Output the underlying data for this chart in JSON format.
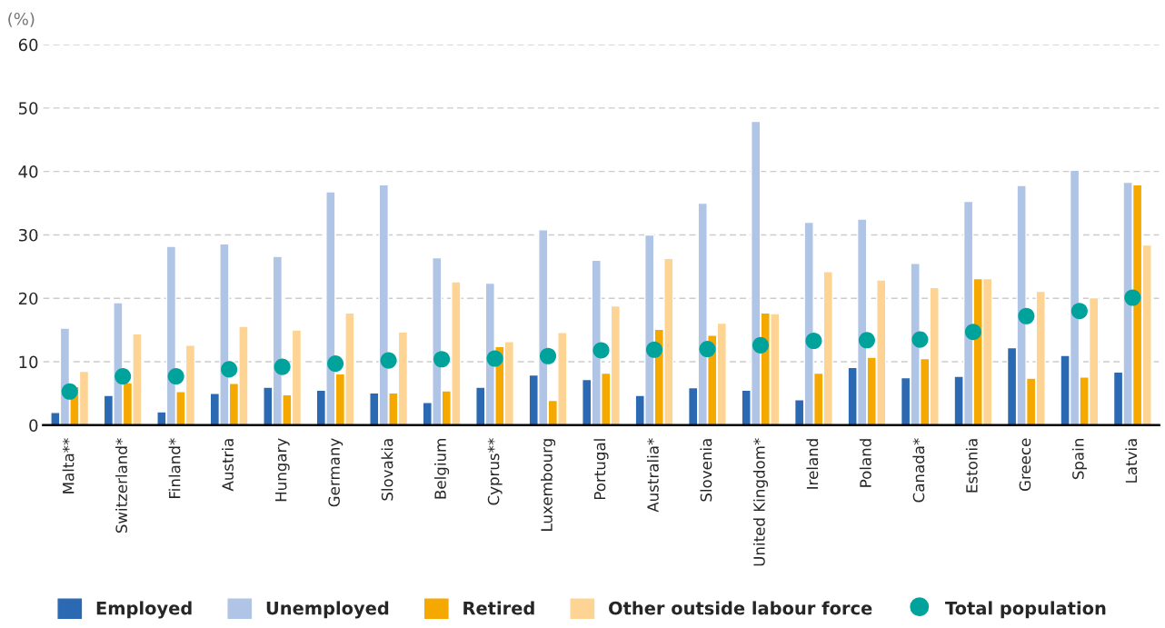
{
  "chart_data": {
    "type": "bar",
    "ylabel": "(%)",
    "categories": [
      "Malta**",
      "Switzerland*",
      "Finland*",
      "Austria",
      "Hungary",
      "Germany",
      "Slovakia",
      "Belgium",
      "Cyprus**",
      "Luxembourg",
      "Portugal",
      "Australia*",
      "Slovenia",
      "United Kingdom*",
      "Ireland",
      "Poland",
      "Canada*",
      "Estonia",
      "Greece",
      "Spain",
      "Latvia"
    ],
    "series": [
      {
        "name": "Employed",
        "color": "#2b6ab2",
        "values": [
          2.0,
          4.7,
          2.1,
          5.0,
          6.0,
          5.5,
          5.1,
          3.6,
          6.0,
          7.9,
          7.2,
          4.7,
          5.9,
          5.5,
          4.0,
          9.1,
          7.5,
          7.7,
          12.2,
          11.0,
          8.4
        ]
      },
      {
        "name": "Unemployed",
        "color": "#b0c4e6",
        "values": [
          15.3,
          19.3,
          28.2,
          28.6,
          26.6,
          36.8,
          37.9,
          26.4,
          22.4,
          30.8,
          26.0,
          30.0,
          35.0,
          47.9,
          32.0,
          32.5,
          25.5,
          35.3,
          37.8,
          40.2,
          38.3
        ]
      },
      {
        "name": "Retired",
        "color": "#f5a800",
        "values": [
          6.1,
          6.7,
          5.3,
          6.6,
          4.8,
          8.1,
          5.1,
          5.4,
          12.4,
          3.9,
          8.2,
          15.1,
          14.2,
          17.7,
          8.2,
          10.7,
          10.5,
          23.1,
          7.4,
          7.6,
          37.9
        ]
      },
      {
        "name": "Other outside labour force",
        "color": "#fdd493",
        "values": [
          8.5,
          14.4,
          12.6,
          15.6,
          15.0,
          17.7,
          14.7,
          22.6,
          13.2,
          14.6,
          18.8,
          26.3,
          16.1,
          17.6,
          24.2,
          22.9,
          21.7,
          23.1,
          21.1,
          20.1,
          28.4
        ]
      },
      {
        "name": "Total population",
        "type": "scatter",
        "color": "#00a39c",
        "values": [
          5.3,
          7.7,
          7.7,
          8.8,
          9.2,
          9.7,
          10.2,
          10.4,
          10.5,
          10.9,
          11.8,
          11.9,
          12.0,
          12.6,
          13.3,
          13.4,
          13.5,
          14.7,
          17.2,
          18.0,
          20.1
        ]
      }
    ],
    "ylim": [
      0,
      60
    ],
    "yticks": [
      0,
      10,
      20,
      30,
      40,
      50,
      60
    ],
    "grid": "y",
    "legend": "bottom",
    "marker": "circle"
  }
}
